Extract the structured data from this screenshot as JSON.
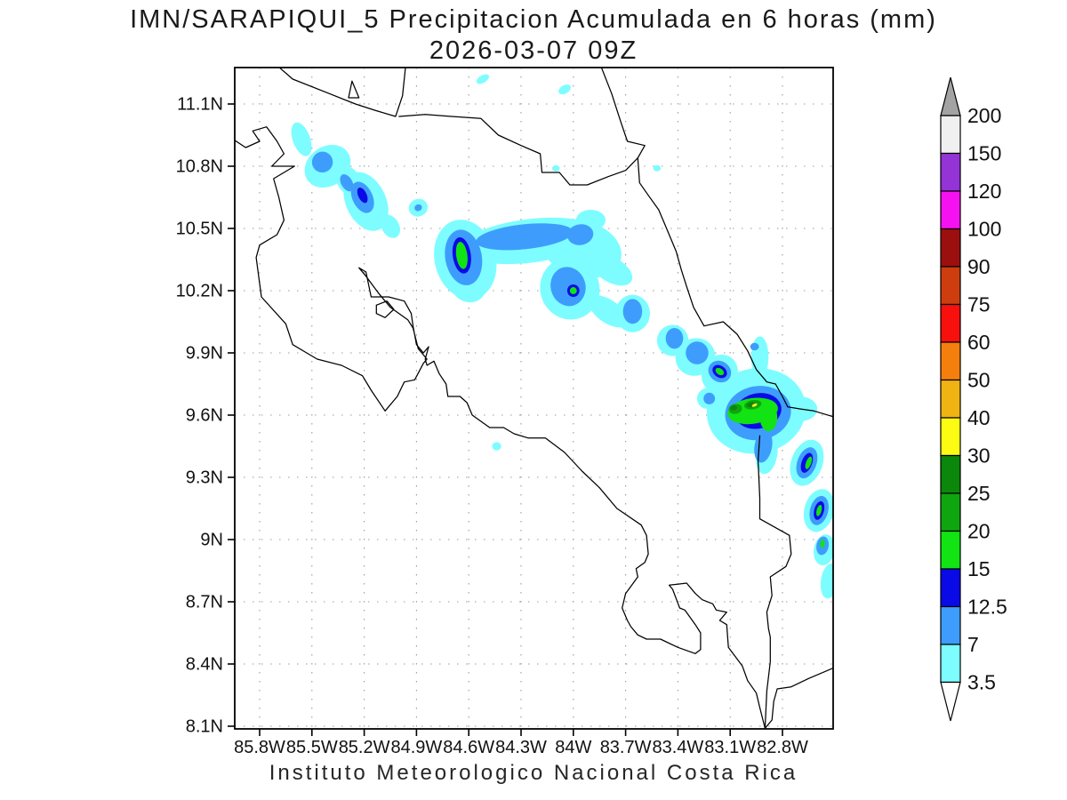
{
  "title": {
    "line1": "IMN/SARAPIQUI_5 Precipitacion Acumulada en 6 horas (mm)",
    "line2": "2026-03-07 09Z"
  },
  "caption": "Instituto Meteorologico Nacional Costa Rica",
  "map": {
    "lon_ticks": [
      {
        "label": "85.8W",
        "lon": 85.8
      },
      {
        "label": "85.5W",
        "lon": 85.5
      },
      {
        "label": "85.2W",
        "lon": 85.2
      },
      {
        "label": "84.9W",
        "lon": 84.9
      },
      {
        "label": "84.6W",
        "lon": 84.6
      },
      {
        "label": "84.3W",
        "lon": 84.3
      },
      {
        "label": "84W",
        "lon": 84.0
      },
      {
        "label": "83.7W",
        "lon": 83.7
      },
      {
        "label": "83.4W",
        "lon": 83.4
      },
      {
        "label": "83.1W",
        "lon": 83.1
      },
      {
        "label": "82.8W",
        "lon": 82.8
      }
    ],
    "lat_ticks": [
      {
        "label": "11.1N",
        "lat": 11.1
      },
      {
        "label": "10.8N",
        "lat": 10.8
      },
      {
        "label": "10.5N",
        "lat": 10.5
      },
      {
        "label": "10.2N",
        "lat": 10.2
      },
      {
        "label": "9.9N",
        "lat": 9.9
      },
      {
        "label": "9.6N",
        "lat": 9.6
      },
      {
        "label": "9.3N",
        "lat": 9.3
      },
      {
        "label": "9N",
        "lat": 9.0
      },
      {
        "label": "8.7N",
        "lat": 8.7
      },
      {
        "label": "8.4N",
        "lat": 8.4
      },
      {
        "label": "8.1N",
        "lat": 8.1
      }
    ],
    "grid_color": "#9a9a9a",
    "coast_color": "#000000",
    "precip_level_colors": [
      "#7DFDFF",
      "#3E9DFC",
      "#0A0AE6",
      "#12E312",
      "#0FA50F",
      "#0B870B",
      "#FCFC13"
    ],
    "precip_levels_mm": [
      3.5,
      7,
      12.5,
      15,
      20,
      25,
      30
    ],
    "coastlines": {
      "pacific_and_south": [
        [
          85.97,
          10.94
        ],
        [
          85.88,
          10.89
        ],
        [
          85.8,
          10.92
        ],
        [
          85.84,
          10.97
        ],
        [
          85.76,
          10.99
        ],
        [
          85.7,
          10.92
        ],
        [
          85.66,
          10.86
        ],
        [
          85.73,
          10.8
        ],
        [
          85.6,
          10.8
        ],
        [
          85.72,
          10.74
        ],
        [
          85.69,
          10.65
        ],
        [
          85.66,
          10.54
        ],
        [
          85.7,
          10.47
        ],
        [
          85.8,
          10.42
        ],
        [
          85.82,
          10.36
        ],
        [
          85.79,
          10.17
        ],
        [
          85.65,
          10.04
        ],
        [
          85.61,
          9.94
        ],
        [
          85.53,
          9.9
        ],
        [
          85.47,
          9.87
        ],
        [
          85.33,
          9.84
        ],
        [
          85.21,
          9.79
        ],
        [
          85.16,
          9.72
        ],
        [
          85.08,
          9.62
        ],
        [
          85.01,
          9.69
        ],
        [
          84.97,
          9.76
        ],
        [
          84.91,
          9.77
        ],
        [
          84.86,
          9.85
        ],
        [
          84.84,
          9.87
        ],
        [
          84.89,
          9.92
        ],
        [
          84.92,
          10.02
        ],
        [
          84.95,
          10.06
        ],
        [
          85.05,
          10.12
        ],
        [
          85.12,
          10.19
        ],
        [
          85.19,
          10.27
        ],
        [
          85.23,
          10.31
        ],
        [
          85.19,
          10.29
        ],
        [
          85.16,
          10.17
        ],
        [
          85.06,
          10.17
        ],
        [
          84.97,
          10.15
        ],
        [
          84.93,
          10.09
        ],
        [
          84.92,
          10.03
        ],
        [
          84.9,
          9.94
        ],
        [
          84.86,
          9.9
        ],
        [
          84.83,
          9.93
        ],
        [
          84.85,
          9.87
        ],
        [
          84.84,
          9.84
        ],
        [
          84.8,
          9.86
        ],
        [
          84.77,
          9.8
        ],
        [
          84.73,
          9.75
        ],
        [
          84.72,
          9.69
        ],
        [
          84.65,
          9.69
        ],
        [
          84.61,
          9.66
        ],
        [
          84.58,
          9.6
        ],
        [
          84.53,
          9.57
        ],
        [
          84.48,
          9.54
        ],
        [
          84.4,
          9.54
        ],
        [
          84.34,
          9.51
        ],
        [
          84.26,
          9.49
        ],
        [
          84.16,
          9.49
        ],
        [
          84.05,
          9.42
        ],
        [
          83.95,
          9.33
        ],
        [
          83.85,
          9.25
        ],
        [
          83.75,
          9.15
        ],
        [
          83.61,
          9.07
        ],
        [
          83.58,
          9.02
        ],
        [
          83.57,
          8.93
        ],
        [
          83.59,
          8.89
        ],
        [
          83.64,
          8.86
        ],
        [
          83.63,
          8.82
        ],
        [
          83.7,
          8.74
        ],
        [
          83.72,
          8.67
        ],
        [
          83.69,
          8.61
        ],
        [
          83.67,
          8.58
        ],
        [
          83.63,
          8.54
        ],
        [
          83.58,
          8.52
        ],
        [
          83.5,
          8.52
        ],
        [
          83.4,
          8.48
        ],
        [
          83.3,
          8.45
        ],
        [
          83.27,
          8.47
        ],
        [
          83.27,
          8.55
        ],
        [
          83.3,
          8.59
        ],
        [
          83.36,
          8.66
        ],
        [
          83.39,
          8.67
        ],
        [
          83.43,
          8.76
        ],
        [
          83.45,
          8.78
        ],
        [
          83.35,
          8.79
        ],
        [
          83.3,
          8.74
        ],
        [
          83.26,
          8.71
        ],
        [
          83.2,
          8.69
        ],
        [
          83.18,
          8.66
        ],
        [
          83.12,
          8.65
        ],
        [
          83.16,
          8.61
        ],
        [
          83.12,
          8.59
        ],
        [
          83.11,
          8.48
        ],
        [
          83.03,
          8.39
        ],
        [
          83.0,
          8.32
        ],
        [
          82.95,
          8.26
        ],
        [
          82.93,
          8.19
        ],
        [
          82.9,
          8.09
        ],
        [
          82.86,
          8.13
        ],
        [
          82.85,
          8.22
        ],
        [
          82.83,
          8.28
        ],
        [
          82.75,
          8.29
        ],
        [
          82.65,
          8.33
        ],
        [
          82.51,
          8.38
        ]
      ],
      "caribbean": [
        [
          83.85,
          11.3
        ],
        [
          83.78,
          11.15
        ],
        [
          83.73,
          11.02
        ],
        [
          83.69,
          10.92
        ],
        [
          83.59,
          10.9
        ],
        [
          83.63,
          10.84
        ],
        [
          83.62,
          10.72
        ],
        [
          83.57,
          10.66
        ],
        [
          83.51,
          10.59
        ],
        [
          83.45,
          10.47
        ],
        [
          83.41,
          10.39
        ],
        [
          83.38,
          10.3
        ],
        [
          83.35,
          10.22
        ],
        [
          83.31,
          10.12
        ],
        [
          83.25,
          10.03
        ],
        [
          83.14,
          10.05
        ],
        [
          83.06,
          9.99
        ],
        [
          83.0,
          9.91
        ],
        [
          82.95,
          9.82
        ],
        [
          82.89,
          9.76
        ],
        [
          82.84,
          9.75
        ],
        [
          82.8,
          9.69
        ],
        [
          82.77,
          9.64
        ],
        [
          82.7,
          9.63
        ],
        [
          82.62,
          9.62
        ],
        [
          82.5,
          9.59
        ]
      ],
      "san_juan_border": [
        [
          85.0,
          11.04
        ],
        [
          84.85,
          11.05
        ],
        [
          84.7,
          11.04
        ],
        [
          84.53,
          11.03
        ],
        [
          84.43,
          10.95
        ],
        [
          84.3,
          10.9
        ],
        [
          84.19,
          10.86
        ],
        [
          84.18,
          10.77
        ],
        [
          84.08,
          10.77
        ],
        [
          84.02,
          10.71
        ],
        [
          83.92,
          10.71
        ],
        [
          83.8,
          10.75
        ],
        [
          83.7,
          10.78
        ],
        [
          83.63,
          10.84
        ]
      ],
      "lake_nicaragua": [
        [
          85.72,
          11.3
        ],
        [
          85.61,
          11.22
        ],
        [
          85.4,
          11.15
        ],
        [
          85.25,
          11.1
        ],
        [
          85.14,
          11.07
        ],
        [
          85.02,
          11.04
        ],
        [
          84.98,
          11.14
        ],
        [
          84.96,
          11.3
        ]
      ],
      "lake_island": [
        [
          85.27,
          11.21
        ],
        [
          85.23,
          11.13
        ],
        [
          85.29,
          11.13
        ],
        [
          85.27,
          11.21
        ]
      ],
      "chira_island": [
        [
          85.13,
          10.13
        ],
        [
          85.07,
          10.15
        ],
        [
          85.03,
          10.11
        ],
        [
          85.08,
          10.07
        ],
        [
          85.13,
          10.09
        ],
        [
          85.13,
          10.13
        ]
      ],
      "panama_border": [
        [
          82.93,
          9.5
        ],
        [
          82.94,
          9.38
        ],
        [
          82.93,
          9.2
        ],
        [
          82.93,
          9.1
        ],
        [
          82.76,
          9.02
        ],
        [
          82.75,
          8.93
        ],
        [
          82.78,
          8.87
        ],
        [
          82.87,
          8.82
        ],
        [
          82.86,
          8.73
        ],
        [
          82.89,
          8.65
        ],
        [
          82.88,
          8.57
        ],
        [
          82.87,
          8.53
        ],
        [
          82.87,
          8.41
        ],
        [
          82.89,
          8.27
        ],
        [
          82.9,
          8.09
        ]
      ]
    },
    "precip_shapes": [
      [
        0,
        85.56,
        10.93,
        0.05,
        0.085,
        -20
      ],
      [
        0,
        85.41,
        10.8,
        0.14,
        0.095,
        -35
      ],
      [
        0,
        85.29,
        10.73,
        0.065,
        0.08,
        -30
      ],
      [
        0,
        85.19,
        10.63,
        0.115,
        0.15,
        -25
      ],
      [
        0,
        85.05,
        10.51,
        0.05,
        0.06,
        -30
      ],
      [
        0,
        84.89,
        10.6,
        0.055,
        0.042,
        -20
      ],
      [
        0,
        84.62,
        10.35,
        0.175,
        0.195,
        -15
      ],
      [
        0,
        84.6,
        10.22,
        0.1,
        0.075,
        20
      ],
      [
        0,
        84.25,
        10.44,
        0.4,
        0.105,
        -7
      ],
      [
        0,
        83.95,
        10.4,
        0.23,
        0.135,
        15
      ],
      [
        0,
        83.78,
        10.3,
        0.13,
        0.06,
        30
      ],
      [
        0,
        83.9,
        10.54,
        0.085,
        0.05,
        0
      ],
      [
        0,
        84.02,
        10.21,
        0.17,
        0.15,
        -20
      ],
      [
        0,
        83.8,
        10.1,
        0.13,
        0.055,
        35
      ],
      [
        0,
        83.66,
        10.09,
        0.1,
        0.09,
        0
      ],
      [
        0,
        83.43,
        9.96,
        0.09,
        0.075,
        -20
      ],
      [
        0,
        83.3,
        9.88,
        0.115,
        0.09,
        -20
      ],
      [
        0,
        83.16,
        9.8,
        0.1,
        0.095,
        35
      ],
      [
        0,
        83.23,
        9.68,
        0.06,
        0.05,
        0
      ],
      [
        0,
        82.95,
        9.62,
        0.285,
        0.205,
        -10
      ],
      [
        0,
        83.13,
        9.6,
        0.085,
        0.05,
        0
      ],
      [
        0,
        82.93,
        9.88,
        0.05,
        0.1,
        0
      ],
      [
        0,
        82.89,
        9.41,
        0.06,
        0.095,
        10
      ],
      [
        0,
        82.7,
        9.63,
        0.1,
        0.06,
        0
      ],
      [
        0,
        82.66,
        9.37,
        0.09,
        0.115,
        20
      ],
      [
        0,
        82.59,
        9.14,
        0.085,
        0.105,
        15
      ],
      [
        0,
        82.56,
        8.95,
        0.06,
        0.075,
        10
      ],
      [
        0,
        82.53,
        8.8,
        0.05,
        0.085,
        8
      ],
      [
        0,
        84.52,
        11.22,
        0.04,
        0.018,
        -30
      ],
      [
        0,
        84.05,
        11.17,
        0.038,
        0.02,
        -30
      ],
      [
        0,
        84.1,
        10.79,
        0.022,
        0.015,
        0
      ],
      [
        0,
        83.52,
        10.79,
        0.022,
        0.015,
        0
      ],
      [
        0,
        84.44,
        9.45,
        0.026,
        0.02,
        0
      ],
      [
        1,
        85.44,
        10.82,
        0.06,
        0.05,
        -35
      ],
      [
        1,
        85.3,
        10.72,
        0.032,
        0.045,
        -30
      ],
      [
        1,
        85.21,
        10.65,
        0.058,
        0.08,
        -25
      ],
      [
        1,
        84.89,
        10.6,
        0.022,
        0.016,
        -20
      ],
      [
        1,
        84.63,
        10.36,
        0.105,
        0.135,
        -10
      ],
      [
        1,
        84.28,
        10.46,
        0.28,
        0.06,
        -6
      ],
      [
        1,
        83.96,
        10.47,
        0.075,
        0.05,
        -10
      ],
      [
        1,
        84.03,
        10.22,
        0.1,
        0.095,
        -15
      ],
      [
        1,
        83.66,
        10.1,
        0.055,
        0.06,
        0
      ],
      [
        1,
        83.42,
        9.97,
        0.05,
        0.05,
        0
      ],
      [
        1,
        83.29,
        9.9,
        0.065,
        0.055,
        -20
      ],
      [
        1,
        83.16,
        9.81,
        0.068,
        0.05,
        35
      ],
      [
        1,
        83.22,
        9.68,
        0.033,
        0.028,
        0
      ],
      [
        1,
        82.94,
        9.61,
        0.19,
        0.13,
        -10
      ],
      [
        1,
        82.91,
        9.45,
        0.05,
        0.08,
        10
      ],
      [
        1,
        82.96,
        9.93,
        0.025,
        0.018,
        0
      ],
      [
        1,
        82.66,
        9.37,
        0.055,
        0.078,
        20
      ],
      [
        1,
        82.59,
        9.14,
        0.052,
        0.072,
        15
      ],
      [
        1,
        82.57,
        8.97,
        0.035,
        0.045,
        10
      ],
      [
        2,
        85.21,
        10.66,
        0.024,
        0.04,
        -25
      ],
      [
        2,
        84.64,
        10.37,
        0.052,
        0.088,
        -8
      ],
      [
        2,
        84.0,
        10.2,
        0.035,
        0.03,
        0
      ],
      [
        2,
        83.16,
        9.81,
        0.045,
        0.028,
        35
      ],
      [
        2,
        82.94,
        9.62,
        0.135,
        0.085,
        -12
      ],
      [
        2,
        82.66,
        9.37,
        0.03,
        0.05,
        20
      ],
      [
        2,
        82.59,
        9.14,
        0.028,
        0.046,
        15
      ],
      [
        3,
        84.64,
        10.37,
        0.032,
        0.066,
        -8
      ],
      [
        3,
        84.0,
        10.2,
        0.02,
        0.017,
        0
      ],
      [
        3,
        83.16,
        9.81,
        0.027,
        0.015,
        35
      ],
      [
        3,
        82.97,
        9.62,
        0.145,
        0.062,
        -8
      ],
      [
        3,
        82.88,
        9.59,
        0.05,
        0.068,
        0
      ],
      [
        3,
        82.65,
        9.37,
        0.015,
        0.032,
        20
      ],
      [
        3,
        82.59,
        9.14,
        0.014,
        0.028,
        15
      ],
      [
        3,
        82.57,
        8.98,
        0.013,
        0.02,
        10
      ],
      [
        4,
        83.07,
        9.63,
        0.038,
        0.024,
        -10
      ],
      [
        4,
        82.97,
        9.65,
        0.05,
        0.022,
        -10
      ],
      [
        5,
        83.08,
        9.635,
        0.02,
        0.012,
        -10
      ],
      [
        5,
        82.98,
        9.65,
        0.026,
        0.012,
        -15
      ],
      [
        6,
        82.96,
        9.648,
        0.016,
        0.0065,
        -25
      ]
    ]
  },
  "colorbar": {
    "labels_top_to_bottom": [
      "200",
      "150",
      "120",
      "100",
      "90",
      "75",
      "60",
      "50",
      "40",
      "30",
      "25",
      "20",
      "15",
      "12.5",
      "7",
      "3.5"
    ],
    "colors_top_to_bottom": [
      "#F0F0F0",
      "#9433D6",
      "#F511F0",
      "#9C0F0F",
      "#CE3D0E",
      "#F7100C",
      "#F57F0C",
      "#EFB312",
      "#FCFC13",
      "#0B870B",
      "#0FA50F",
      "#12E312",
      "#0A0AE6",
      "#3E9DFC",
      "#7DFDFF"
    ],
    "over_arrow_color": "#A3A3A3",
    "under_arrow_color": "#FFFFFF"
  }
}
